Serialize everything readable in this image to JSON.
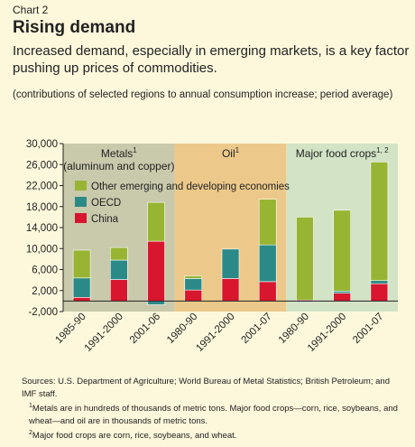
{
  "header": {
    "chart_label": "Chart 2",
    "title": "Rising demand",
    "subtitle": "Increased demand, especially in emerging markets, is a key factor pushing up prices of commodities.",
    "note": "(contributions of selected regions to annual consumption increase; period average)"
  },
  "colors": {
    "other": "#97b533",
    "oecd": "#2b8a87",
    "china": "#d8162e",
    "panel_metals": "#c9c9ac",
    "panel_oil": "#ecc98a",
    "panel_food": "#d3e3c5",
    "bar_outline": "#ffffff",
    "axis": "#222222"
  },
  "chart_data": {
    "type": "bar",
    "stacked": true,
    "ylim": [
      -2000,
      30000
    ],
    "yticks": [
      -2000,
      2000,
      6000,
      10000,
      14000,
      18000,
      22000,
      26000,
      30000
    ],
    "ytick_labels": [
      "-2,000",
      "2,000",
      "6,000",
      "10,000",
      "14,000",
      "18,000",
      "22,000",
      "26,000",
      "30,000"
    ],
    "categories": [
      "1985-90",
      "1991-2000",
      "2001-06",
      "1980-90",
      "1991-2000",
      "2001-07",
      "1980-90",
      "1991-2000",
      "2001-07"
    ],
    "groups": [
      {
        "label": "Metals",
        "sup": "1",
        "sublabel": "(aluminum and copper)",
        "range": [
          0,
          3
        ]
      },
      {
        "label": "Oil",
        "sup": "1",
        "sublabel": "",
        "range": [
          3,
          6
        ]
      },
      {
        "label": "Major food crops",
        "sup": "1, 2",
        "sublabel": "",
        "range": [
          6,
          9
        ]
      }
    ],
    "series": [
      {
        "name": "China",
        "key": "china",
        "values": [
          700,
          4100,
          11400,
          2100,
          4300,
          3700,
          200,
          1500,
          3300
        ]
      },
      {
        "name": "OECD",
        "key": "oecd",
        "values": [
          3700,
          3700,
          -700,
          2200,
          5600,
          7000,
          -200,
          400,
          600
        ]
      },
      {
        "name": "Other emerging and developing economies",
        "key": "other",
        "values": [
          5300,
          2400,
          7400,
          500,
          0,
          8700,
          15800,
          15400,
          22600
        ]
      }
    ],
    "legend_order": [
      "other",
      "oecd",
      "china"
    ],
    "legend_position": "upper-left"
  },
  "footer": {
    "sources": "Sources: U.S. Department of Agriculture; World Bureau of Metal Statistics; British Petroleum; and IMF staff.",
    "note1_mark": "1",
    "note1": "Metals are in hundreds of thousands of metric tons. Major food crops—corn, rice, soybeans, and wheat—and oil are in thousands of metric tons.",
    "note2_mark": "2",
    "note2": "Major food crops are corn, rice, soybeans, and wheat."
  }
}
